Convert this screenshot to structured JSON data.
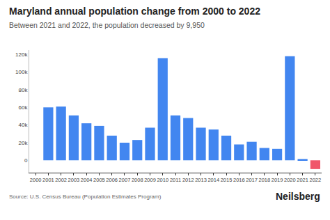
{
  "chart_data": {
    "type": "bar",
    "title": "Maryland annual population change from 2000 to 2022",
    "subtitle": "Between 2021 and 2022, the population decreased by 9,950",
    "annotations": [
      "Source: U.S. Census Bureau (Population Estimates Program)",
      "Neilsberg"
    ],
    "categories": [
      "2000",
      "2001",
      "2002",
      "2003",
      "2004",
      "2005",
      "2006",
      "2007",
      "2008",
      "2009",
      "2010",
      "2011",
      "2012",
      "2013",
      "2014",
      "2015",
      "2016",
      "2017",
      "2018",
      "2019",
      "2020",
      "2021",
      "2022"
    ],
    "values": [
      null,
      60000,
      61000,
      51000,
      42000,
      39000,
      28000,
      20000,
      23000,
      37000,
      116000,
      51000,
      48000,
      37000,
      35000,
      28000,
      18000,
      21000,
      14000,
      13000,
      118000,
      1500,
      -9950
    ],
    "colors": [
      "#4286f0",
      "#4286f0",
      "#4286f0",
      "#4286f0",
      "#4286f0",
      "#4286f0",
      "#4286f0",
      "#4286f0",
      "#4286f0",
      "#4286f0",
      "#4286f0",
      "#4286f0",
      "#4286f0",
      "#4286f0",
      "#4286f0",
      "#4286f0",
      "#4286f0",
      "#4286f0",
      "#4286f0",
      "#4286f0",
      "#4286f0",
      "#4286f0",
      "#f0566a"
    ],
    "ylim": [
      -14000,
      125000
    ],
    "yticks": [
      0,
      {
        "value": 20000,
        "label": "20k"
      },
      {
        "value": 40000,
        "label": "40k"
      },
      {
        "value": 60000,
        "label": "60k"
      },
      {
        "value": 80000,
        "label": "80k"
      },
      {
        "value": 100000,
        "label": "100k"
      },
      {
        "value": 120000,
        "label": "120k"
      }
    ],
    "grid": false
  }
}
